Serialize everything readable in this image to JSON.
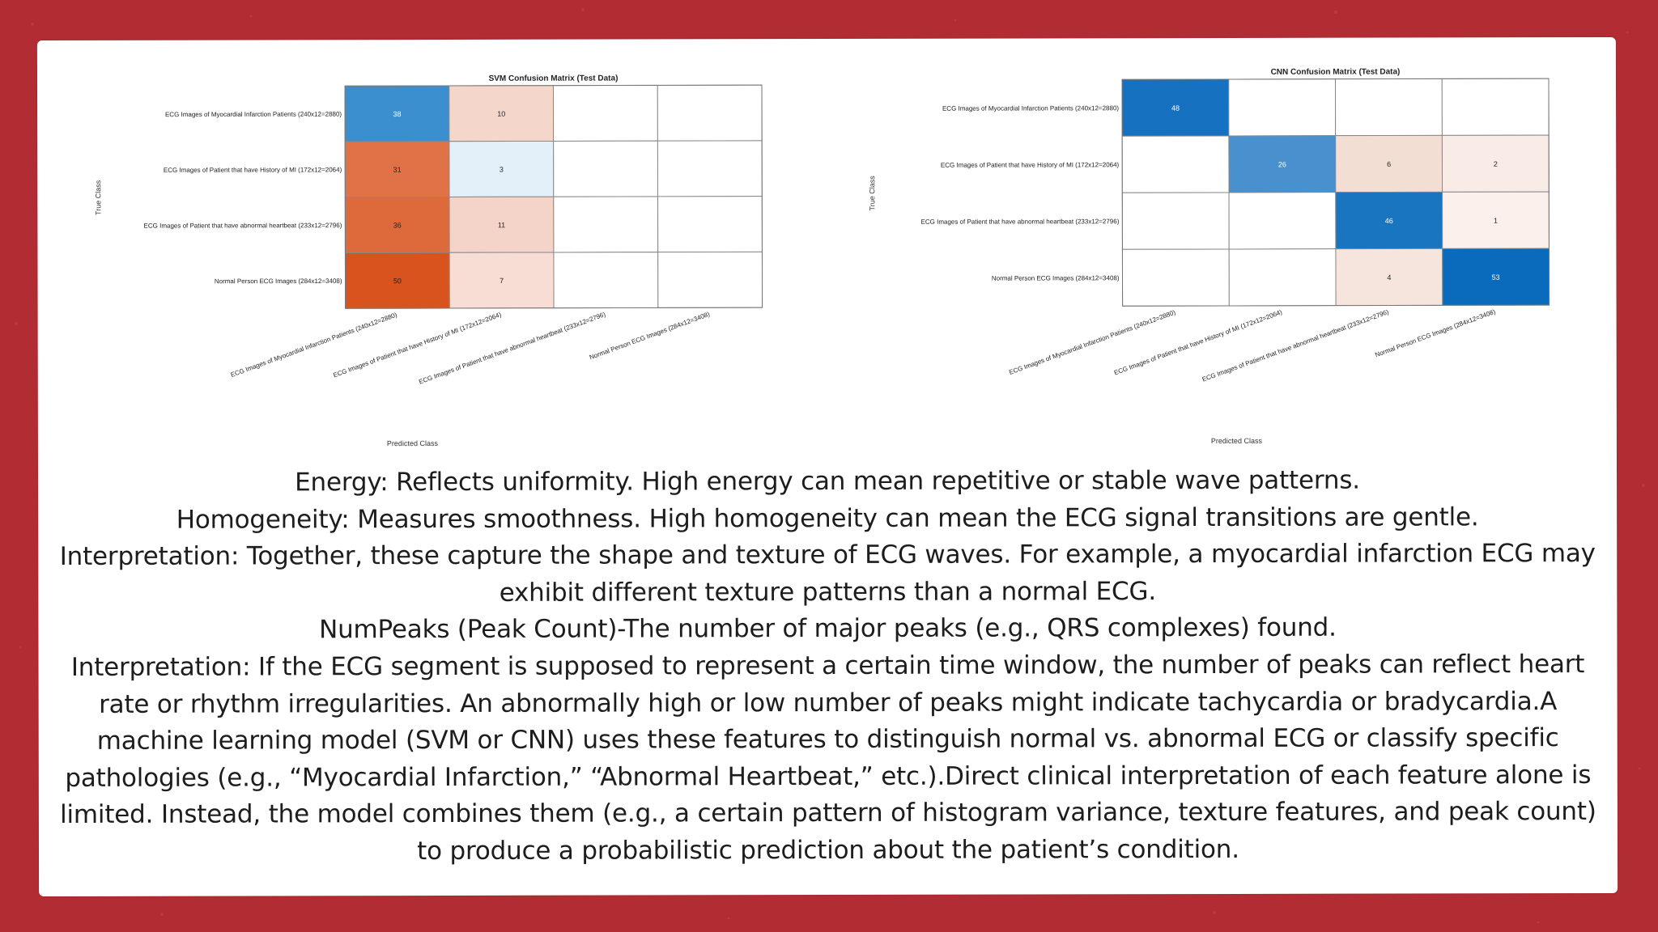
{
  "colors": {
    "background": "#b12c33",
    "card": "#ffffff",
    "svm_max": "#d9531e",
    "cnn_max": "#0a6bbd"
  },
  "chart_data": [
    {
      "type": "heatmap",
      "title": "SVM Confusion Matrix (Test Data)",
      "xlabel": "Predicted Class",
      "ylabel": "True Class",
      "rows": [
        "ECG Images of Myocardial Infarction Patients (240x12=2880)",
        "ECG Images of Patient that have History of MI (172x12=2064)",
        "ECG Images of Patient that have abnormal heartbeat (233x12=2796)",
        "Normal Person ECG Images (284x12=3408)"
      ],
      "columns": [
        "ECG Images of Myocardial Infarction Patients (240x12=2880)",
        "ECG Images of Patient that have History of MI (172x12=2064)",
        "ECG Images of Patient that have abnormal heartbeat (233x12=2796)",
        "Normal Person ECG Images (284x12=3408)"
      ],
      "matrix": [
        [
          38,
          10,
          null,
          null
        ],
        [
          31,
          3,
          null,
          null
        ],
        [
          36,
          11,
          null,
          null
        ],
        [
          50,
          7,
          null,
          null
        ]
      ]
    },
    {
      "type": "heatmap",
      "title": "CNN Confusion Matrix (Test Data)",
      "xlabel": "Predicted Class",
      "ylabel": "True Class",
      "rows": [
        "ECG Images of Myocardial Infarction Patients (240x12=2880)",
        "ECG Images of Patient that have History of MI (172x12=2064)",
        "ECG Images of Patient that have abnormal heartbeat (233x12=2796)",
        "Normal Person ECG Images (284x12=3408)"
      ],
      "columns": [
        "ECG Images of Myocardial Infarction Patients (240x12=2880)",
        "ECG Images of Patient that have History of MI (172x12=2064)",
        "ECG Images of Patient that have abnormal heartbeat (233x12=2796)",
        "Normal Person ECG Images (284x12=3408)"
      ],
      "matrix": [
        [
          48,
          null,
          null,
          null
        ],
        [
          null,
          26,
          6,
          2
        ],
        [
          null,
          null,
          46,
          1
        ],
        [
          null,
          null,
          4,
          53
        ]
      ]
    }
  ],
  "text": {
    "energy": "Energy: Reflects uniformity. High energy can mean repetitive or stable wave patterns.",
    "homogeneity": "Homogeneity: Measures smoothness. High homogeneity can mean the ECG signal transitions are gentle.",
    "interpretation1": "Interpretation: Together, these capture the shape and texture of ECG waves. For example, a myocardial infarction ECG may exhibit different texture patterns than a normal ECG.",
    "numpeaks": "NumPeaks (Peak Count)-The number of major peaks (e.g., QRS complexes) found.",
    "interpretation2": "Interpretation: If the ECG segment is supposed to represent a certain time window, the number of peaks can reflect heart rate or rhythm irregularities. An abnormally high or low number of peaks might indicate tachycardia or bradycardia.A machine learning model (SVM or CNN) uses these features to distinguish normal vs. abnormal ECG or classify specific pathologies (e.g., “Myocardial Infarction,” “Abnormal Heartbeat,” etc.).Direct clinical interpretation of each feature alone is limited. Instead, the model combines them (e.g., a certain pattern of histogram variance, texture features, and peak count) to produce a probabilistic prediction about the patient’s condition."
  }
}
